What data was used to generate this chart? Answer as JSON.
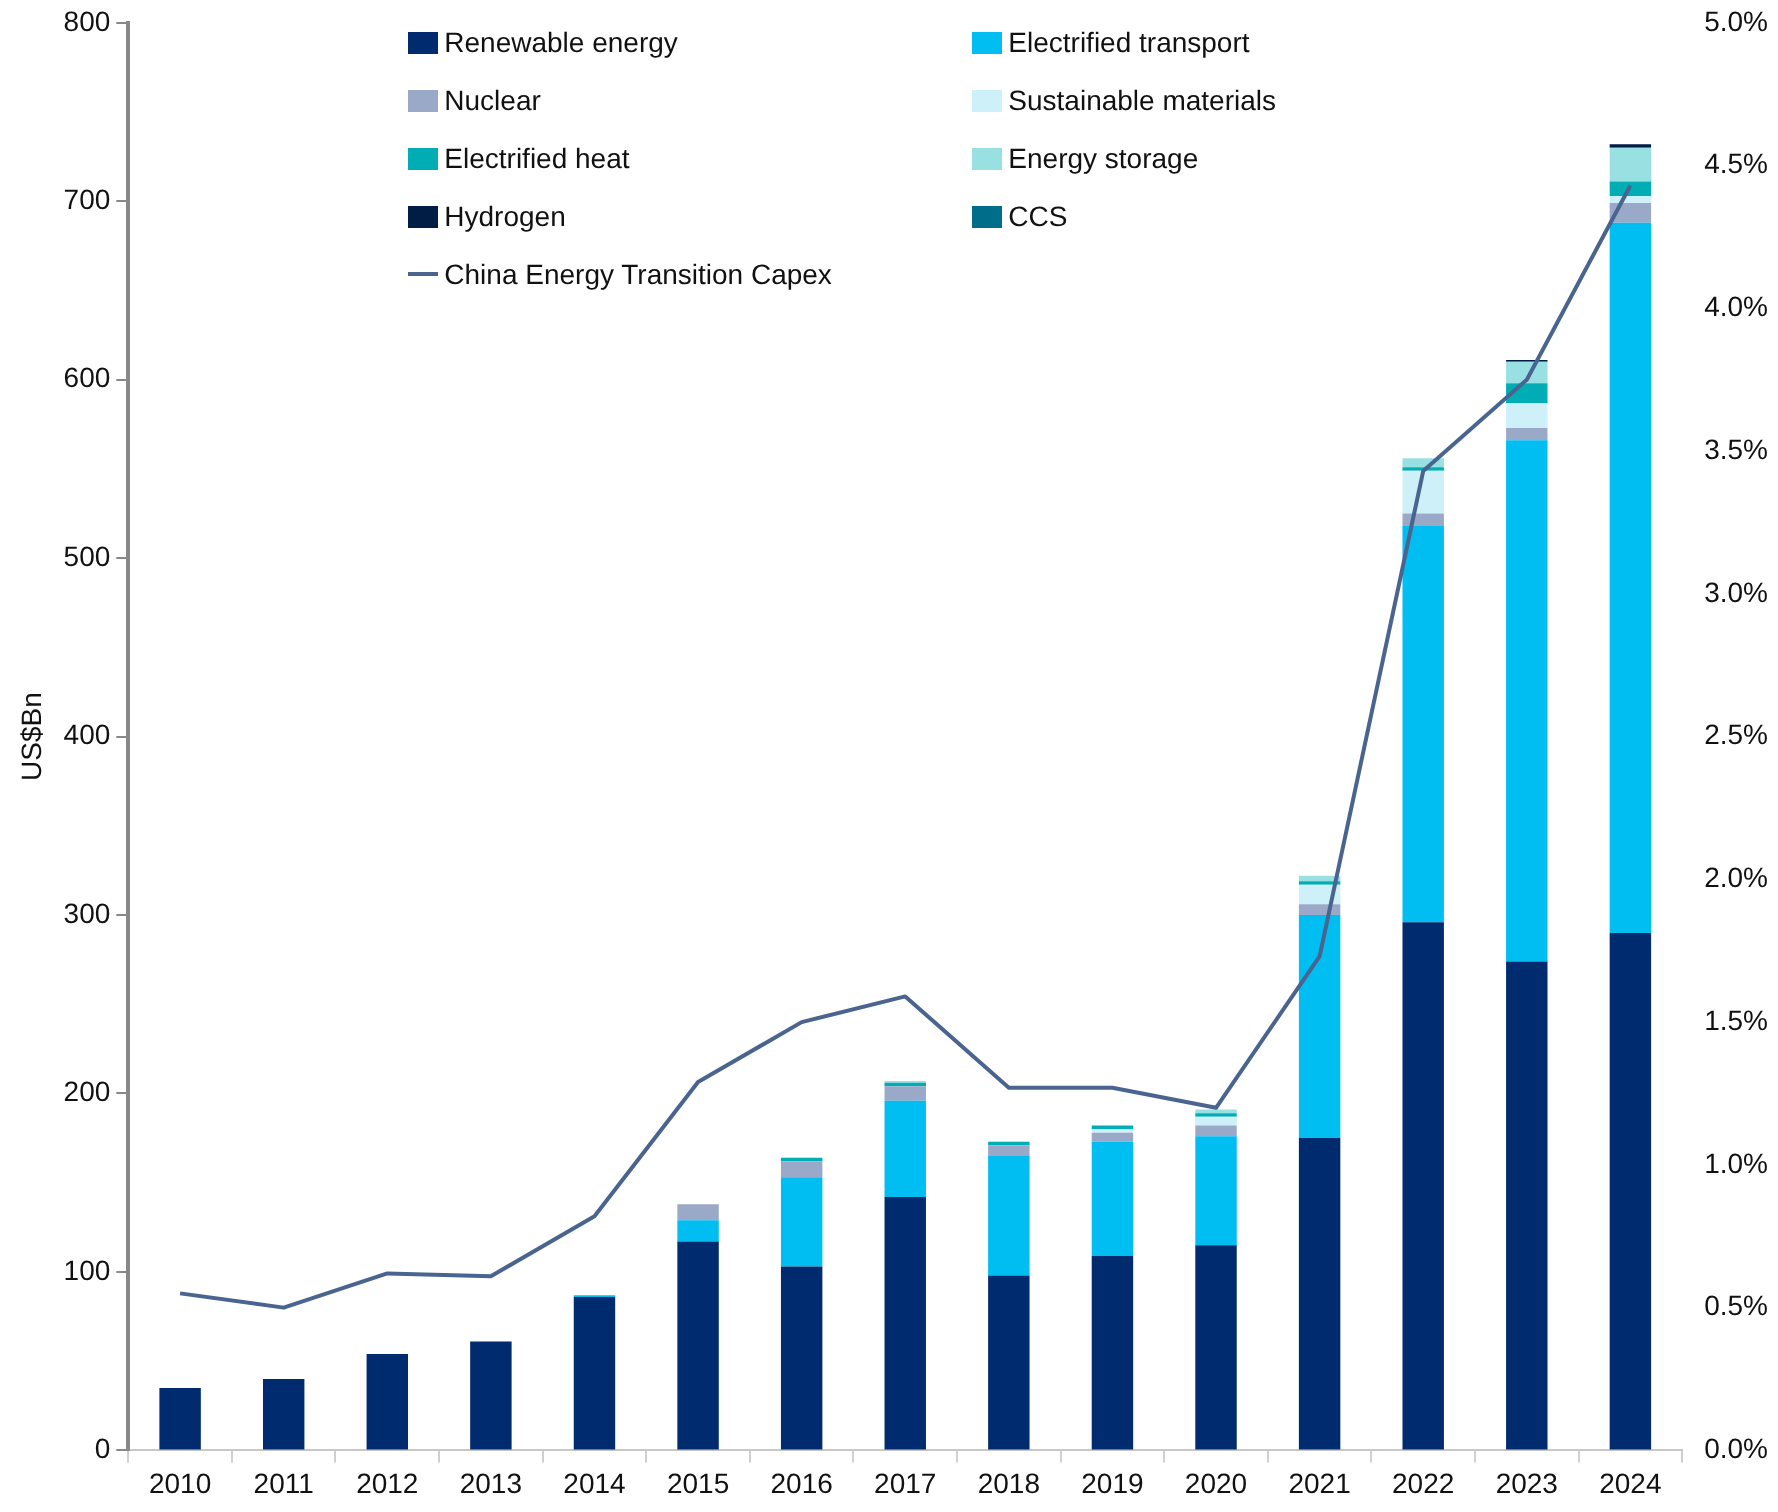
{
  "chart_data": {
    "type": "bar",
    "stacked": true,
    "ylabel": "US$Bn",
    "legend": "top left",
    "grid": false,
    "categories": [
      "2010",
      "2011",
      "2012",
      "2013",
      "2014",
      "2015",
      "2016",
      "2017",
      "2018",
      "2019",
      "2020",
      "2021",
      "2022",
      "2023",
      "2024"
    ],
    "ylim": [
      0,
      800
    ],
    "yticks": [
      0,
      100,
      200,
      300,
      400,
      500,
      600,
      700,
      800
    ],
    "y2lim": [
      0,
      5
    ],
    "y2ticks": [
      {
        "value": 0,
        "label": "0.0%"
      },
      {
        "value": 0.5,
        "label": "0.5%"
      },
      {
        "value": 1,
        "label": "1.0%"
      },
      {
        "value": 1.5,
        "label": "1.5%"
      },
      {
        "value": 2,
        "label": "2.0%"
      },
      {
        "value": 2.5,
        "label": "2.5%"
      },
      {
        "value": 3,
        "label": "3.0%"
      },
      {
        "value": 3.5,
        "label": "3.5%"
      },
      {
        "value": 4,
        "label": "4.0%"
      },
      {
        "value": 4.5,
        "label": "4.5%"
      },
      {
        "value": 5,
        "label": "5.0%"
      }
    ],
    "series": [
      {
        "name": "Renewable energy",
        "color": "#002b6e",
        "values": [
          35,
          40,
          54,
          61,
          86,
          117,
          103,
          142,
          98,
          109,
          115,
          175,
          296,
          274,
          290
        ]
      },
      {
        "name": "Electrified transport",
        "color": "#00bdf2",
        "values": [
          0,
          0,
          0,
          0,
          1,
          12,
          50,
          54,
          67,
          64,
          61,
          125,
          222,
          292,
          398
        ]
      },
      {
        "name": "Nuclear",
        "color": "#9aa9c8",
        "values": [
          0,
          0,
          0,
          0,
          0,
          9,
          9,
          8,
          6,
          5,
          6,
          6,
          7,
          7,
          11
        ]
      },
      {
        "name": "Sustainable materials",
        "color": "#cdf0f9",
        "values": [
          0,
          0,
          0,
          0,
          0,
          0,
          0,
          0,
          0,
          2,
          5,
          11,
          24,
          14,
          4
        ]
      },
      {
        "name": "Electrified heat",
        "color": "#00adb5",
        "values": [
          0,
          0,
          0,
          0,
          0,
          0,
          2,
          2,
          2,
          2,
          2,
          2,
          2,
          11,
          8
        ]
      },
      {
        "name": "Energy storage",
        "color": "#99e0e3",
        "values": [
          0,
          0,
          0,
          0,
          0,
          0,
          0,
          1,
          0,
          0,
          2,
          3,
          5,
          12,
          19
        ]
      },
      {
        "name": "Hydrogen",
        "color": "#001d45",
        "values": [
          0,
          0,
          0,
          0,
          0,
          0,
          0,
          0,
          0,
          0,
          0,
          0,
          0,
          1,
          2
        ]
      },
      {
        "name": "CCS",
        "color": "#006e8a",
        "values": [
          0,
          0,
          0,
          0,
          0,
          0,
          0,
          0,
          0,
          0,
          0,
          0,
          0,
          0,
          0
        ]
      },
      {
        "name": "China Energy Transition Capex",
        "type": "line",
        "axis": "y2",
        "color": "#4a6490",
        "marker": "none",
        "values": [
          0.55,
          0.5,
          0.62,
          0.61,
          0.82,
          1.29,
          1.5,
          1.59,
          1.27,
          1.27,
          1.2,
          1.73,
          3.43,
          3.75,
          4.43
        ]
      }
    ]
  }
}
